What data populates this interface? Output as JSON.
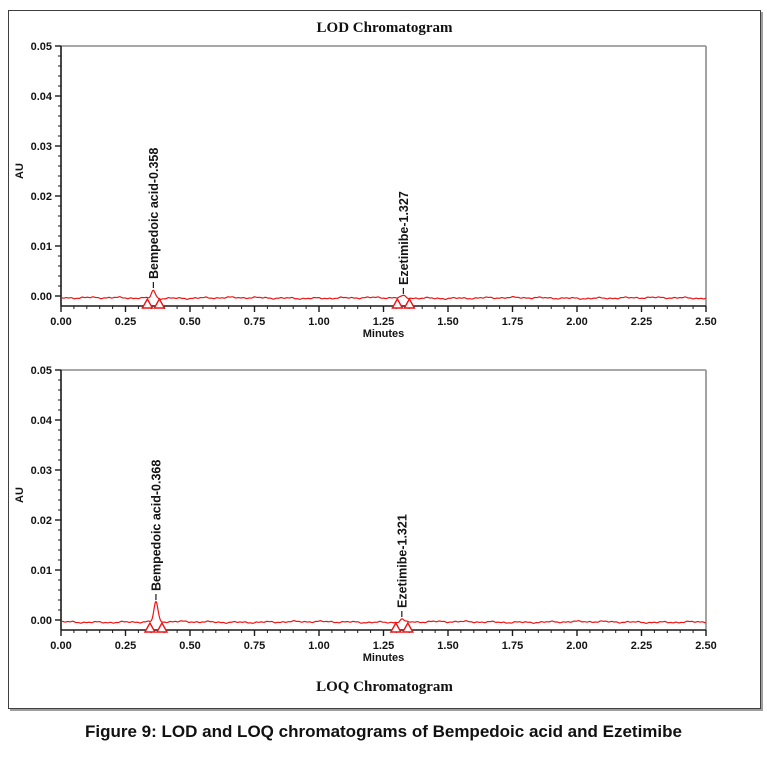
{
  "figure": {
    "caption": "Figure 9: LOD and LOQ chromatograms of Bempedoic acid and Ezetimibe"
  },
  "chart_data": [
    {
      "type": "line",
      "title": "LOD Chromatogram",
      "title_position": "top",
      "xlabel": "Minutes",
      "ylabel": "AU",
      "xlim": [
        0,
        2.5
      ],
      "ylim": [
        0,
        0.05
      ],
      "x_tick_labels": [
        "0.00",
        "0.25",
        "0.50",
        "0.75",
        "1.00",
        "1.25",
        "1.50",
        "1.75",
        "2.00",
        "2.25",
        "2.50"
      ],
      "y_tick_labels": [
        "0.00",
        "0.01",
        "0.02",
        "0.03",
        "0.04",
        "0.05"
      ],
      "x_minor_step": 0.05,
      "y_minor_step": 0.002,
      "grid": false,
      "legend": false,
      "line_color": "#ef1212",
      "baseline_au": 0.0,
      "series": [
        {
          "name": "LOD trace",
          "description": "noisy flat baseline at 0.000 AU with two small integrated peaks marked by open triangles"
        }
      ],
      "peaks": [
        {
          "analyte": "Bempedoic acid",
          "label": "Bempedoic acid-0.358",
          "retention_time_min": 0.358,
          "height_au": 0.0016
        },
        {
          "analyte": "Ezetimibe",
          "label": "Ezetimibe-1.327",
          "retention_time_min": 1.327,
          "height_au": 0.0004
        }
      ]
    },
    {
      "type": "line",
      "title": "LOQ Chromatogram",
      "title_position": "bottom",
      "xlabel": "Minutes",
      "ylabel": "AU",
      "xlim": [
        0,
        2.5
      ],
      "ylim": [
        0,
        0.05
      ],
      "x_tick_labels": [
        "0.00",
        "0.25",
        "0.50",
        "0.75",
        "1.00",
        "1.25",
        "1.50",
        "1.75",
        "2.00",
        "2.25",
        "2.50"
      ],
      "y_tick_labels": [
        "0.00",
        "0.01",
        "0.02",
        "0.03",
        "0.04",
        "0.05"
      ],
      "x_minor_step": 0.05,
      "y_minor_step": 0.002,
      "grid": false,
      "legend": false,
      "line_color": "#ef1212",
      "baseline_au": 0.0,
      "series": [
        {
          "name": "LOQ trace",
          "description": "noisy flat baseline at 0.000 AU with two small integrated peaks marked by open triangles"
        }
      ],
      "peaks": [
        {
          "analyte": "Bempedoic acid",
          "label": "Bempedoic acid-0.368",
          "retention_time_min": 0.368,
          "height_au": 0.004
        },
        {
          "analyte": "Ezetimibe",
          "label": "Ezetimibe-1.321",
          "retention_time_min": 1.321,
          "height_au": 0.0006
        }
      ]
    }
  ]
}
